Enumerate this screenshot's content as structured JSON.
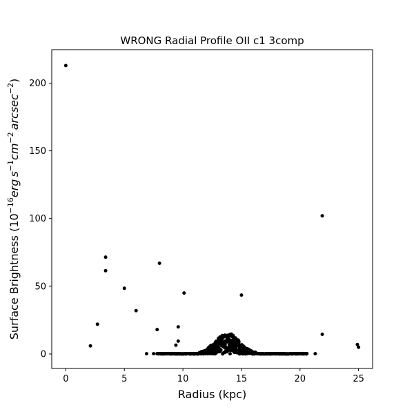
{
  "chart_data": {
    "type": "scatter",
    "title": "WRONG Radial Profile OII c1 3comp",
    "xlabel": "Radius (kpc)",
    "ylabel": {
      "prefix": "Surface Brightness (10",
      "exp1": "−16",
      "erg": "erg",
      "s": "s",
      "exp2": "−1",
      "cm": "cm",
      "exp3": "−2",
      "arcsec": "arcsec",
      "exp4": "−2",
      "suffix": ")"
    },
    "xlim": [
      -1.2,
      26.2
    ],
    "ylim": [
      -10.7,
      224.7
    ],
    "xticks": [
      0,
      5,
      10,
      15,
      20,
      25
    ],
    "yticks": [
      0,
      50,
      100,
      150,
      200
    ],
    "grid": false,
    "legend": "none",
    "marker_color": "#000000",
    "outlier_points": [
      {
        "x": 0.0,
        "y": 213.0
      },
      {
        "x": 2.1,
        "y": 6.0
      },
      {
        "x": 2.7,
        "y": 22.0
      },
      {
        "x": 3.4,
        "y": 71.5
      },
      {
        "x": 3.4,
        "y": 61.5
      },
      {
        "x": 5.0,
        "y": 48.5
      },
      {
        "x": 6.0,
        "y": 32.0
      },
      {
        "x": 6.9,
        "y": 0.2
      },
      {
        "x": 7.5,
        "y": 0.2
      },
      {
        "x": 7.8,
        "y": 18.0
      },
      {
        "x": 8.0,
        "y": 67.0
      },
      {
        "x": 9.4,
        "y": 6.5
      },
      {
        "x": 9.6,
        "y": 20.0
      },
      {
        "x": 9.6,
        "y": 9.5
      },
      {
        "x": 10.1,
        "y": 45.0
      },
      {
        "x": 15.0,
        "y": 43.5
      },
      {
        "x": 21.3,
        "y": 0.2
      },
      {
        "x": 21.9,
        "y": 102.0
      },
      {
        "x": 21.9,
        "y": 14.5
      },
      {
        "x": 24.9,
        "y": 7.0
      },
      {
        "x": 25.0,
        "y": 5.0
      }
    ],
    "bulk_profile": {
      "description_x_range": [
        7.8,
        20.6
      ],
      "peak_center_x": 13.8,
      "peak_width_x": 1.05,
      "peak_height_y": 15.5,
      "step_x": 0.04
    }
  }
}
